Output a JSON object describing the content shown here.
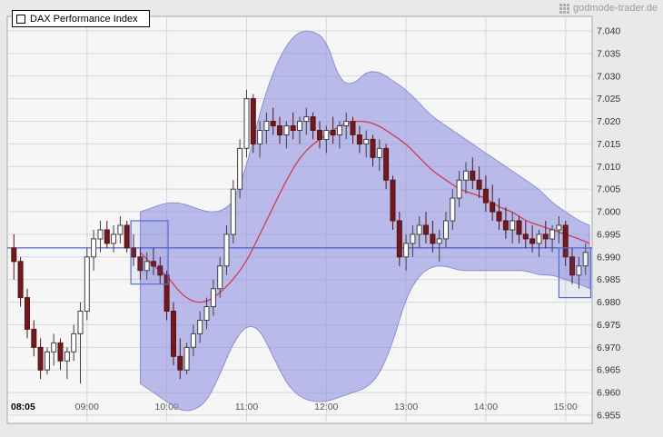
{
  "legend": {
    "label": "DAX Performance Index"
  },
  "watermark": {
    "text": "godmode-trader.de"
  },
  "chart_data": {
    "type": "candlestick",
    "title": "DAX Performance Index",
    "x_axis": {
      "plot_start": "08:00",
      "plot_end": "15:20",
      "ticks": [
        {
          "label": "08:05",
          "time": "08:05",
          "bold": true,
          "gridline": false,
          "align": "left"
        },
        {
          "label": "09:00",
          "time": "09:00"
        },
        {
          "label": "10:00",
          "time": "10:00"
        },
        {
          "label": "11:00",
          "time": "11:00"
        },
        {
          "label": "12:00",
          "time": "12:00"
        },
        {
          "label": "13:00",
          "time": "13:00"
        },
        {
          "label": "14:00",
          "time": "14:00"
        },
        {
          "label": "15:00",
          "time": "15:00"
        }
      ]
    },
    "y_axis": {
      "min": 6.955,
      "max": 7.04,
      "step": 0.005,
      "tick_labels": [
        "7.040",
        "7.035",
        "7.030",
        "7.025",
        "7.020",
        "7.015",
        "7.010",
        "7.005",
        "7.000",
        "6.995",
        "6.990",
        "6.985",
        "6.980",
        "6.975",
        "6.970",
        "6.965",
        "6.960",
        "6.955"
      ]
    },
    "horizontal_line": {
      "value": 6.992,
      "color": "#2f46c0"
    },
    "moving_average": {
      "color": "#d23b4e",
      "points": [
        [
          "09:40",
          6.991
        ],
        [
          "09:50",
          6.988
        ],
        [
          "10:00",
          6.986
        ],
        [
          "10:10",
          6.982
        ],
        [
          "10:20",
          6.98
        ],
        [
          "10:30",
          6.98
        ],
        [
          "10:40",
          6.982
        ],
        [
          "10:50",
          6.985
        ],
        [
          "11:00",
          6.989
        ],
        [
          "11:10",
          6.995
        ],
        [
          "11:20",
          7.001
        ],
        [
          "11:30",
          7.007
        ],
        [
          "11:40",
          7.012
        ],
        [
          "11:50",
          7.015
        ],
        [
          "12:00",
          7.017
        ],
        [
          "12:10",
          7.019
        ],
        [
          "12:20",
          7.02
        ],
        [
          "12:30",
          7.02
        ],
        [
          "12:40",
          7.019
        ],
        [
          "12:50",
          7.017
        ],
        [
          "13:00",
          7.015
        ],
        [
          "13:10",
          7.012
        ],
        [
          "13:20",
          7.009
        ],
        [
          "13:30",
          7.007
        ],
        [
          "13:40",
          7.005
        ],
        [
          "13:50",
          7.004
        ],
        [
          "14:00",
          7.003
        ],
        [
          "14:10",
          7.001
        ],
        [
          "14:20",
          7.0
        ],
        [
          "14:30",
          6.998
        ],
        [
          "14:40",
          6.997
        ],
        [
          "14:50",
          6.996
        ],
        [
          "15:00",
          6.995
        ],
        [
          "15:10",
          6.994
        ],
        [
          "15:18",
          6.993
        ]
      ]
    },
    "bollinger_band": {
      "fill": "#9395e0",
      "opacity": 0.62,
      "edge": "#7f82cd",
      "points_columns": [
        "time",
        "upper",
        "lower"
      ],
      "points": [
        [
          "09:40",
          7.0,
          6.962
        ],
        [
          "09:50",
          7.001,
          6.96
        ],
        [
          "10:00",
          7.002,
          6.958
        ],
        [
          "10:10",
          7.002,
          6.956
        ],
        [
          "10:20",
          7.001,
          6.956
        ],
        [
          "10:30",
          7.0,
          6.958
        ],
        [
          "10:40",
          7.0,
          6.964
        ],
        [
          "10:50",
          7.002,
          6.971
        ],
        [
          "11:00",
          7.01,
          6.975
        ],
        [
          "11:10",
          7.022,
          6.974
        ],
        [
          "11:20",
          7.031,
          6.968
        ],
        [
          "11:30",
          7.037,
          6.962
        ],
        [
          "11:40",
          7.04,
          6.959
        ],
        [
          "11:50",
          7.04,
          6.958
        ],
        [
          "12:00",
          7.038,
          6.958
        ],
        [
          "12:10",
          7.029,
          6.959
        ],
        [
          "12:20",
          7.028,
          6.96
        ],
        [
          "12:30",
          7.031,
          6.961
        ],
        [
          "12:40",
          7.031,
          6.964
        ],
        [
          "12:50",
          7.029,
          6.971
        ],
        [
          "13:00",
          7.027,
          6.981
        ],
        [
          "13:10",
          7.024,
          6.986
        ],
        [
          "13:20",
          7.021,
          6.988
        ],
        [
          "13:30",
          7.019,
          6.988
        ],
        [
          "13:40",
          7.017,
          6.987
        ],
        [
          "13:50",
          7.015,
          6.987
        ],
        [
          "14:00",
          7.013,
          6.987
        ],
        [
          "14:10",
          7.011,
          6.987
        ],
        [
          "14:20",
          7.009,
          6.987
        ],
        [
          "14:30",
          7.007,
          6.987
        ],
        [
          "14:40",
          7.005,
          6.986
        ],
        [
          "14:50",
          7.002,
          6.986
        ],
        [
          "15:00",
          7.0,
          6.985
        ],
        [
          "15:10",
          6.998,
          6.984
        ],
        [
          "15:18",
          6.997,
          6.983
        ]
      ]
    },
    "highlight_boxes": [
      {
        "from": "09:33",
        "to": "10:01",
        "top": 6.998,
        "bottom": 6.984
      },
      {
        "from": "14:55",
        "to": "15:19",
        "top": 6.992,
        "bottom": 6.981
      }
    ],
    "colors": {
      "up_fill": "#ffffff",
      "up_stroke": "#404040",
      "down_fill": "#72181e",
      "down_stroke": "#541317",
      "grid": "#d6d6d6",
      "frame": "#a8a8a8",
      "plot_bg": "#f6f6f6",
      "page_bg": "#e9e9e9",
      "box_stroke": "#5a6ad2"
    },
    "candles_columns": [
      "time",
      "open",
      "high",
      "low",
      "close"
    ],
    "candles": [
      [
        "08:05",
        6.992,
        6.995,
        6.985,
        6.989
      ],
      [
        "08:10",
        6.989,
        6.99,
        6.979,
        6.981
      ],
      [
        "08:15",
        6.981,
        6.983,
        6.972,
        6.974
      ],
      [
        "08:20",
        6.974,
        6.976,
        6.968,
        6.97
      ],
      [
        "08:25",
        6.97,
        6.972,
        6.963,
        6.965
      ],
      [
        "08:30",
        6.965,
        6.97,
        6.964,
        6.969
      ],
      [
        "08:35",
        6.969,
        6.973,
        6.966,
        6.971
      ],
      [
        "08:40",
        6.971,
        6.972,
        6.965,
        6.967
      ],
      [
        "08:45",
        6.967,
        6.97,
        6.963,
        6.969
      ],
      [
        "08:50",
        6.969,
        6.975,
        6.967,
        6.973
      ],
      [
        "08:55",
        6.973,
        6.98,
        6.962,
        6.978
      ],
      [
        "09:00",
        6.978,
        6.992,
        6.976,
        6.99
      ],
      [
        "09:05",
        6.99,
        6.996,
        6.987,
        6.994
      ],
      [
        "09:10",
        6.994,
        6.998,
        6.991,
        6.996
      ],
      [
        "09:15",
        6.996,
        6.998,
        6.992,
        6.993
      ],
      [
        "09:20",
        6.993,
        6.997,
        6.991,
        6.995
      ],
      [
        "09:25",
        6.995,
        6.999,
        6.993,
        6.997
      ],
      [
        "09:30",
        6.997,
        6.998,
        6.991,
        6.992
      ],
      [
        "09:35",
        6.992,
        6.995,
        6.988,
        6.99
      ],
      [
        "09:40",
        6.99,
        6.992,
        6.985,
        6.987
      ],
      [
        "09:45",
        6.987,
        6.991,
        6.985,
        6.989
      ],
      [
        "09:50",
        6.989,
        6.992,
        6.986,
        6.988
      ],
      [
        "09:55",
        6.988,
        6.99,
        6.984,
        6.986
      ],
      [
        "10:00",
        6.986,
        6.987,
        6.976,
        6.978
      ],
      [
        "10:05",
        6.978,
        6.98,
        6.966,
        6.968
      ],
      [
        "10:10",
        6.968,
        6.972,
        6.963,
        6.965
      ],
      [
        "10:15",
        6.965,
        6.971,
        6.964,
        6.97
      ],
      [
        "10:20",
        6.97,
        6.975,
        6.968,
        6.973
      ],
      [
        "10:25",
        6.973,
        6.978,
        6.971,
        6.976
      ],
      [
        "10:30",
        6.976,
        6.981,
        6.974,
        6.979
      ],
      [
        "10:35",
        6.979,
        6.985,
        6.977,
        6.983
      ],
      [
        "10:40",
        6.983,
        6.99,
        6.981,
        6.988
      ],
      [
        "10:45",
        6.988,
        6.997,
        6.986,
        6.995
      ],
      [
        "10:50",
        6.995,
        7.007,
        6.993,
        7.005
      ],
      [
        "10:55",
        7.005,
        7.016,
        7.003,
        7.014
      ],
      [
        "11:00",
        7.014,
        7.027,
        7.012,
        7.025
      ],
      [
        "11:05",
        7.025,
        7.026,
        7.013,
        7.015
      ],
      [
        "11:10",
        7.015,
        7.02,
        7.012,
        7.018
      ],
      [
        "11:15",
        7.018,
        7.022,
        7.015,
        7.02
      ],
      [
        "11:20",
        7.02,
        7.023,
        7.017,
        7.019
      ],
      [
        "11:25",
        7.019,
        7.021,
        7.015,
        7.017
      ],
      [
        "11:30",
        7.017,
        7.02,
        7.014,
        7.019
      ],
      [
        "11:35",
        7.019,
        7.022,
        7.016,
        7.018
      ],
      [
        "11:40",
        7.018,
        7.021,
        7.015,
        7.02
      ],
      [
        "11:45",
        7.02,
        7.023,
        7.017,
        7.021
      ],
      [
        "11:50",
        7.021,
        7.022,
        7.016,
        7.018
      ],
      [
        "11:55",
        7.018,
        7.02,
        7.014,
        7.016
      ],
      [
        "12:00",
        7.016,
        7.019,
        7.013,
        7.018
      ],
      [
        "12:05",
        7.018,
        7.021,
        7.015,
        7.017
      ],
      [
        "12:10",
        7.017,
        7.02,
        7.014,
        7.019
      ],
      [
        "12:15",
        7.019,
        7.022,
        7.016,
        7.02
      ],
      [
        "12:20",
        7.02,
        7.021,
        7.015,
        7.017
      ],
      [
        "12:25",
        7.017,
        7.019,
        7.013,
        7.015
      ],
      [
        "12:30",
        7.015,
        7.018,
        7.012,
        7.016
      ],
      [
        "12:35",
        7.016,
        7.017,
        7.01,
        7.012
      ],
      [
        "12:40",
        7.012,
        7.016,
        7.009,
        7.014
      ],
      [
        "12:45",
        7.014,
        7.015,
        7.005,
        7.007
      ],
      [
        "12:50",
        7.007,
        7.008,
        6.996,
        6.998
      ],
      [
        "12:55",
        6.998,
        7.0,
        6.988,
        6.99
      ],
      [
        "13:00",
        6.99,
        6.995,
        6.987,
        6.993
      ],
      [
        "13:05",
        6.993,
        6.997,
        6.99,
        6.995
      ],
      [
        "13:10",
        6.995,
        6.999,
        6.992,
        6.997
      ],
      [
        "13:15",
        6.997,
        7.0,
        6.993,
        6.995
      ],
      [
        "13:20",
        6.995,
        6.998,
        6.991,
        6.993
      ],
      [
        "13:25",
        6.993,
        6.996,
        6.989,
        6.994
      ],
      [
        "13:30",
        6.994,
        7.0,
        6.992,
        6.998
      ],
      [
        "13:35",
        6.998,
        7.005,
        6.996,
        7.003
      ],
      [
        "13:40",
        7.003,
        7.009,
        7.001,
        7.007
      ],
      [
        "13:45",
        7.007,
        7.011,
        7.004,
        7.009
      ],
      [
        "13:50",
        7.009,
        7.012,
        7.005,
        7.007
      ],
      [
        "13:55",
        7.007,
        7.01,
        7.003,
        7.005
      ],
      [
        "14:00",
        7.005,
        7.008,
        7.0,
        7.002
      ],
      [
        "14:05",
        7.002,
        7.006,
        6.998,
        7.0
      ],
      [
        "14:10",
        7.0,
        7.003,
        6.996,
        6.998
      ],
      [
        "14:15",
        6.998,
        7.001,
        6.994,
        6.996
      ],
      [
        "14:20",
        6.996,
        7.0,
        6.993,
        6.998
      ],
      [
        "14:25",
        6.998,
        6.999,
        6.993,
        6.995
      ],
      [
        "14:30",
        6.995,
        6.998,
        6.992,
        6.994
      ],
      [
        "14:35",
        6.994,
        6.997,
        6.991,
        6.993
      ],
      [
        "14:40",
        6.993,
        6.996,
        6.99,
        6.995
      ],
      [
        "14:45",
        6.995,
        6.998,
        6.992,
        6.994
      ],
      [
        "14:50",
        6.994,
        6.997,
        6.991,
        6.996
      ],
      [
        "14:55",
        6.996,
        6.999,
        6.993,
        6.997
      ],
      [
        "15:00",
        6.997,
        6.998,
        6.988,
        6.99
      ],
      [
        "15:05",
        6.99,
        6.992,
        6.984,
        6.986
      ],
      [
        "15:10",
        6.986,
        6.99,
        6.983,
        6.988
      ],
      [
        "15:15",
        6.988,
        6.993,
        6.986,
        6.991
      ]
    ]
  }
}
